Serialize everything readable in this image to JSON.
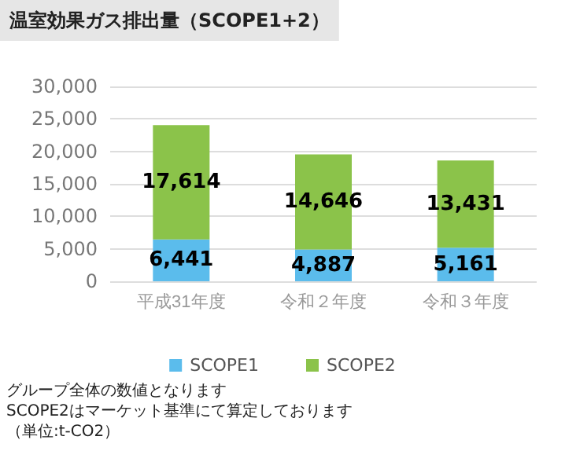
{
  "chart_data": {
    "type": "bar",
    "title": "温室効果ガス排出量（SCOPE1+2）",
    "categories": [
      "平成31年度",
      "令和２年度",
      "令和３年度"
    ],
    "series": [
      {
        "name": "SCOPE1",
        "color": "#5bbcec",
        "values": [
          6441,
          4887,
          5161
        ],
        "value_labels": [
          "6,441",
          "4,887",
          "5,161"
        ]
      },
      {
        "name": "SCOPE2",
        "color": "#8bc34a",
        "values": [
          17614,
          14646,
          13431
        ],
        "value_labels": [
          "17,614",
          "14,646",
          "13,431"
        ]
      }
    ],
    "stacked": true,
    "ylim": [
      0,
      30000
    ],
    "yticks": [
      0,
      {
        "value": 5000,
        "label": "5,000"
      },
      {
        "value": 10000,
        "label": "10,000"
      },
      {
        "value": 15000,
        "label": "15,000"
      },
      {
        "value": 20000,
        "label": "20,000"
      },
      {
        "value": 25000,
        "label": "25,000"
      },
      {
        "value": 30000,
        "label": "30,000"
      }
    ],
    "grid": "y",
    "legend": "bottom",
    "annotations": [
      "グループ全体の数値となります",
      "SCOPE2はマーケット基準にて算定しております",
      "（単位:t-CO2）"
    ]
  }
}
